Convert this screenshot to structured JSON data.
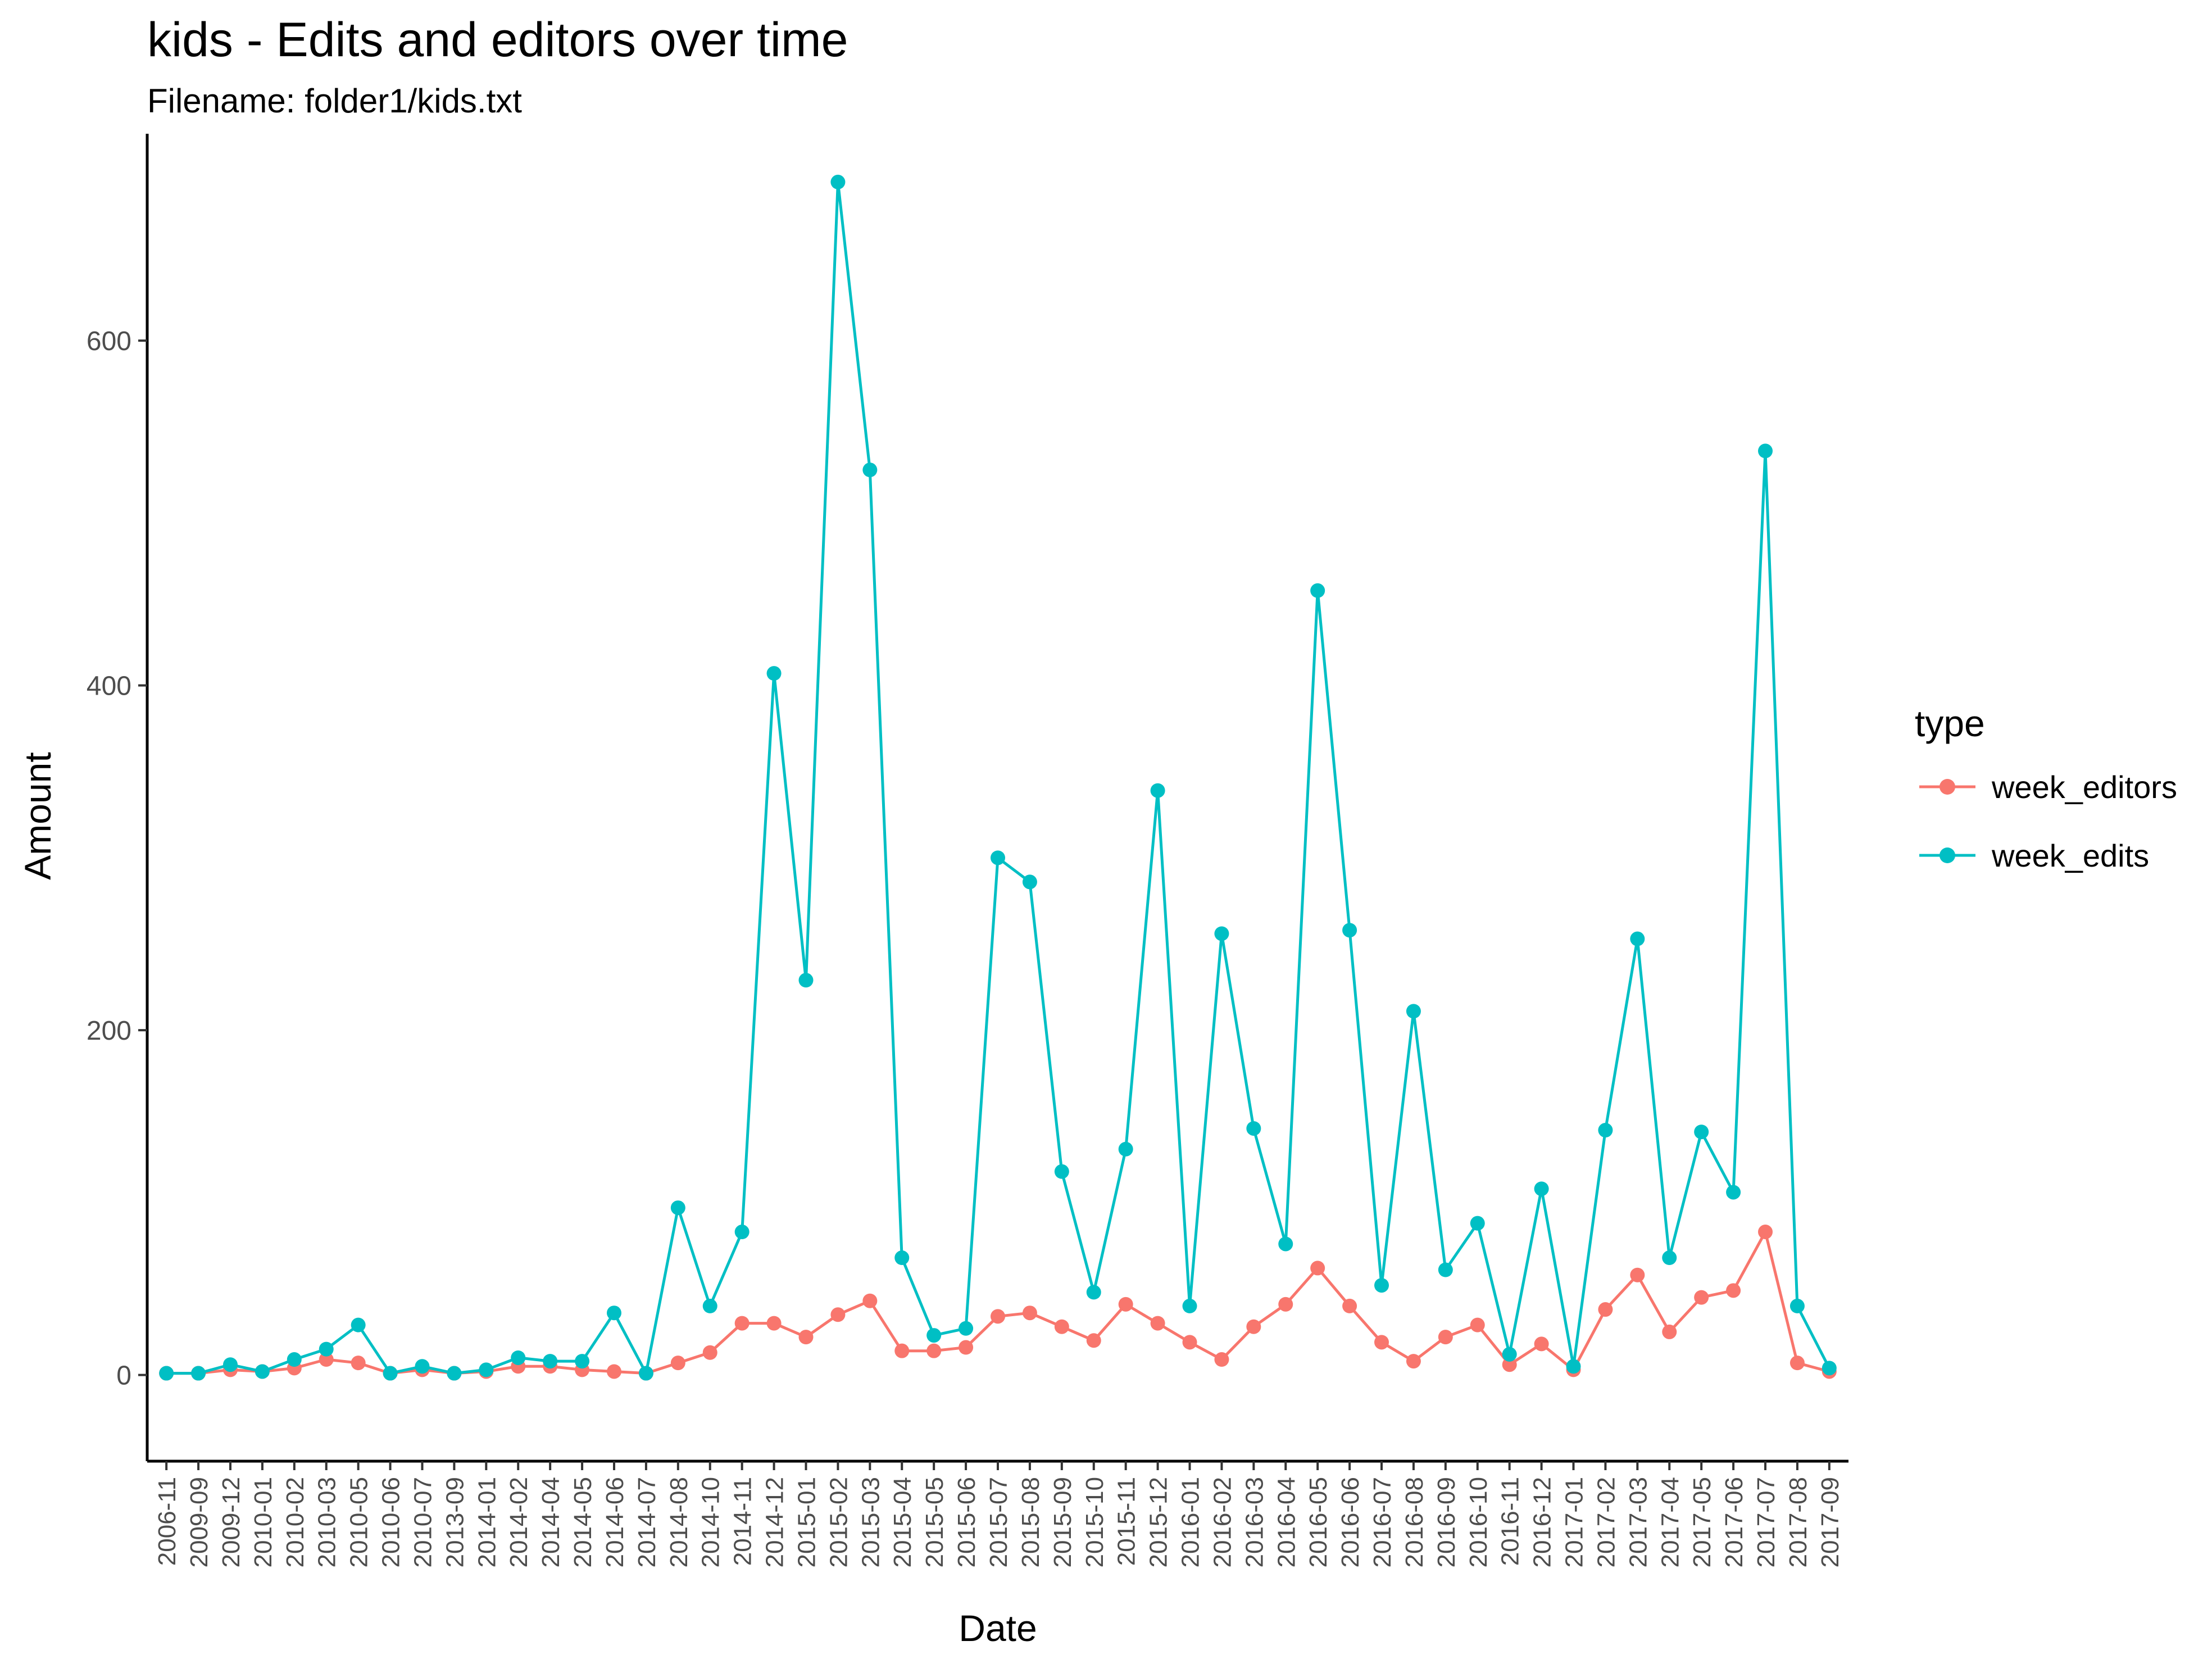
{
  "chart_data": {
    "type": "line",
    "title": "kids - Edits and editors over time",
    "subtitle": "Filename: folder1/kids.txt",
    "xlabel": "Date",
    "ylabel": "Amount",
    "ylim": [
      -50,
      720
    ],
    "yticks": [
      0,
      200,
      400,
      600
    ],
    "grid": false,
    "legend": {
      "title": "type",
      "position": "right"
    },
    "categories": [
      "2006-11",
      "2009-09",
      "2009-12",
      "2010-01",
      "2010-02",
      "2010-03",
      "2010-05",
      "2010-06",
      "2010-07",
      "2013-09",
      "2014-01",
      "2014-02",
      "2014-04",
      "2014-05",
      "2014-06",
      "2014-07",
      "2014-08",
      "2014-10",
      "2014-11",
      "2014-12",
      "2015-01",
      "2015-02",
      "2015-03",
      "2015-04",
      "2015-05",
      "2015-06",
      "2015-07",
      "2015-08",
      "2015-09",
      "2015-10",
      "2015-11",
      "2015-12",
      "2016-01",
      "2016-02",
      "2016-03",
      "2016-04",
      "2016-05",
      "2016-06",
      "2016-07",
      "2016-08",
      "2016-09",
      "2016-10",
      "2016-11",
      "2016-12",
      "2017-01",
      "2017-02",
      "2017-03",
      "2017-04",
      "2017-05",
      "2017-06",
      "2017-07",
      "2017-08",
      "2017-09"
    ],
    "series": [
      {
        "name": "week_editors",
        "color": "#F8766D",
        "values": [
          1,
          1,
          3,
          2,
          4,
          9,
          7,
          1,
          3,
          1,
          2,
          5,
          5,
          3,
          2,
          1,
          7,
          13,
          30,
          30,
          22,
          35,
          43,
          14,
          14,
          16,
          34,
          36,
          28,
          20,
          41,
          30,
          19,
          9,
          28,
          41,
          62,
          40,
          19,
          8,
          22,
          29,
          6,
          18,
          3,
          38,
          58,
          25,
          45,
          49,
          83,
          7,
          2
        ]
      },
      {
        "name": "week_edits",
        "color": "#00BFC4",
        "values": [
          1,
          1,
          6,
          2,
          9,
          15,
          29,
          1,
          5,
          1,
          3,
          10,
          8,
          8,
          36,
          1,
          97,
          40,
          83,
          407,
          229,
          692,
          525,
          68,
          23,
          27,
          300,
          286,
          118,
          48,
          131,
          339,
          40,
          256,
          143,
          76,
          455,
          258,
          52,
          211,
          61,
          88,
          12,
          108,
          5,
          142,
          253,
          68,
          141,
          106,
          536,
          40,
          4
        ]
      }
    ]
  }
}
